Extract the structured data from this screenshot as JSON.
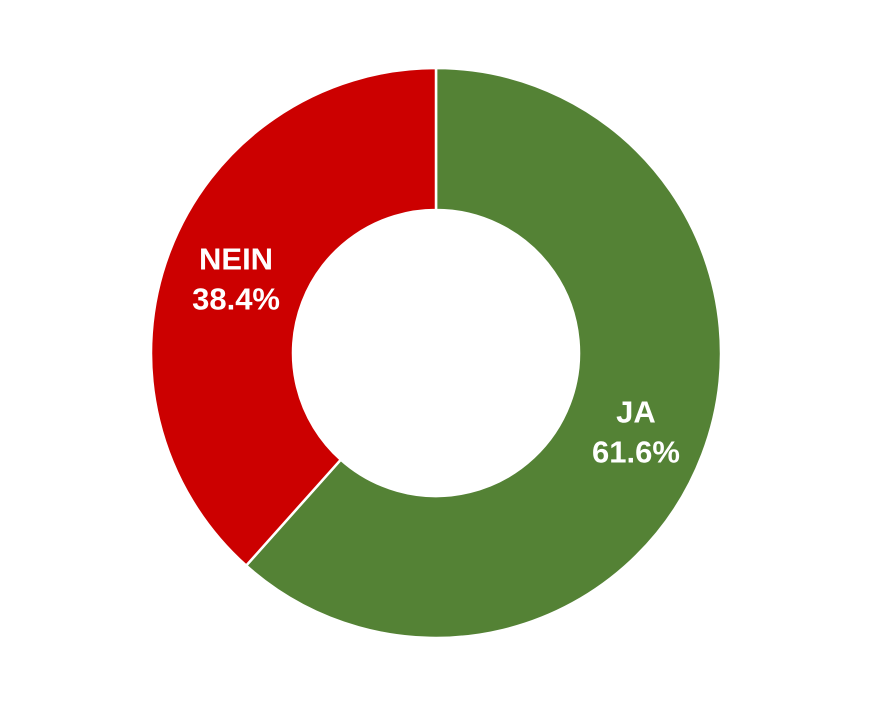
{
  "chart_data": {
    "type": "pie",
    "subtype": "donut",
    "categories": [
      "JA",
      "NEIN"
    ],
    "values": [
      61.6,
      38.4
    ],
    "value_labels": [
      "61.6%",
      "38.4%"
    ],
    "colors": [
      "#548235",
      "#CC0000"
    ],
    "title": "",
    "legend": "none",
    "start": "top",
    "direction": "clockwise"
  }
}
